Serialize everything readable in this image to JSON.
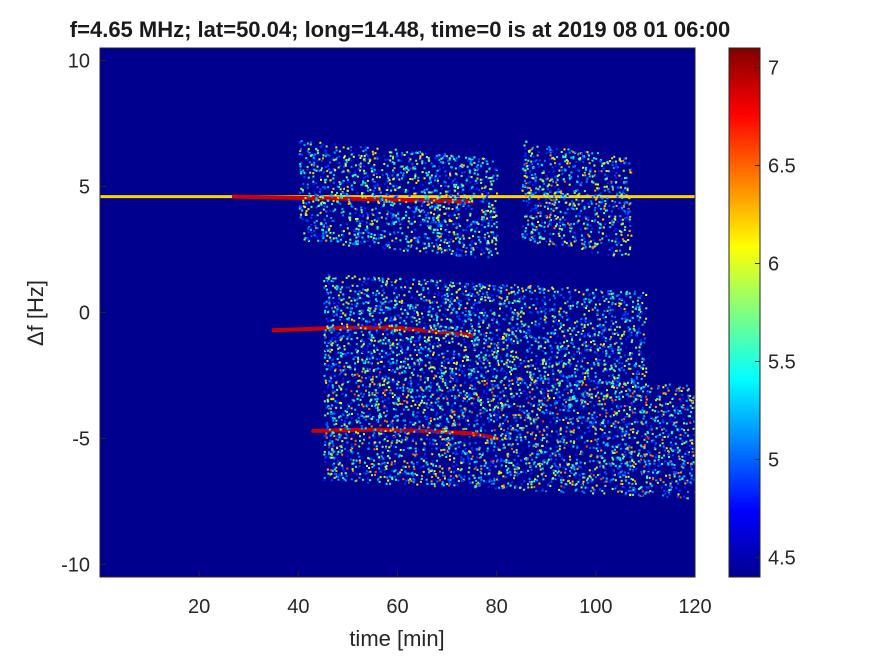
{
  "chart_data": {
    "type": "heatmap",
    "title": "f=4.65 MHz;  lat=50.04; long=14.48, time=0 is at 2019 08 01 06:00",
    "xlabel": "time [min]",
    "ylabel": "Δf [Hz]",
    "xlim": [
      0,
      120
    ],
    "ylim": [
      -10.5,
      10.5
    ],
    "xticks": [
      "20",
      "40",
      "60",
      "80",
      "100",
      "120"
    ],
    "yticks": [
      "10",
      "5",
      "0",
      "-5",
      "-10"
    ],
    "colormap": "jet",
    "background_color": "#00008f",
    "colorbar": {
      "min": 4.4,
      "max": 7.1,
      "ticks": [
        "7",
        "6.5",
        "6",
        "5.5",
        "5",
        "4.5"
      ]
    },
    "features": [
      {
        "kind": "carrier",
        "y": 4.6,
        "x_start": 0,
        "x_end": 120,
        "value": 6.2
      },
      {
        "kind": "trace",
        "points": [
          [
            27,
            4.6
          ],
          [
            40,
            4.55
          ],
          [
            55,
            4.5
          ],
          [
            65,
            4.45
          ],
          [
            75,
            4.4
          ]
        ],
        "value": 6.9
      },
      {
        "kind": "trace",
        "points": [
          [
            35,
            -0.7
          ],
          [
            50,
            -0.6
          ],
          [
            60,
            -0.6
          ],
          [
            67,
            -0.75
          ],
          [
            75,
            -0.9
          ]
        ],
        "value": 6.9
      },
      {
        "kind": "trace",
        "points": [
          [
            43,
            -4.7
          ],
          [
            55,
            -4.65
          ],
          [
            65,
            -4.7
          ],
          [
            75,
            -4.8
          ],
          [
            80,
            -5.0
          ]
        ],
        "value": 6.9
      },
      {
        "kind": "cloud",
        "x": [
          40,
          80
        ],
        "y": [
          2.5,
          6.5
        ],
        "value": 5.3
      },
      {
        "kind": "cloud",
        "x": [
          85,
          107
        ],
        "y": [
          2.5,
          6.5
        ],
        "value": 5.5
      },
      {
        "kind": "cloud",
        "x": [
          45,
          110
        ],
        "y": [
          -2.5,
          1.2
        ],
        "value": 5.3
      },
      {
        "kind": "cloud",
        "x": [
          45,
          120
        ],
        "y": [
          -7.0,
          -2.5
        ],
        "value": 5.6
      }
    ]
  }
}
